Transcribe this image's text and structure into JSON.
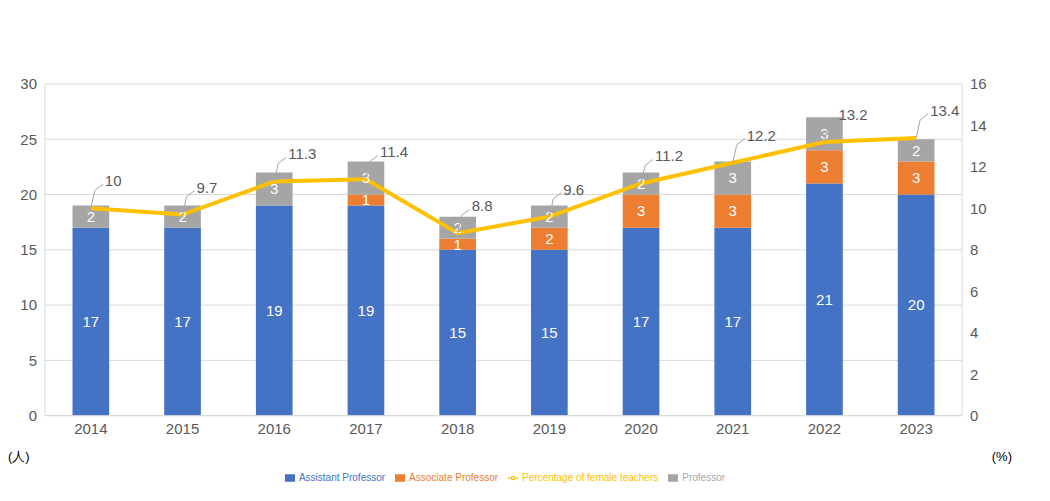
{
  "chart_data": {
    "type": "bar",
    "stacked": true,
    "grid": true,
    "legend": "bottom",
    "data_labels": true,
    "categories": [
      "2014",
      "2015",
      "2016",
      "2017",
      "2018",
      "2019",
      "2020",
      "2021",
      "2022",
      "2023"
    ],
    "ylabel": "(人)",
    "y2label": "(%)",
    "ylim": [
      0,
      30
    ],
    "yticks": [
      0,
      5,
      10,
      15,
      20,
      25,
      30
    ],
    "y2lim": [
      0,
      16
    ],
    "y2ticks": [
      0,
      2,
      4,
      6,
      8,
      10,
      12,
      14,
      16
    ],
    "series": [
      {
        "name": "Assistant Professor",
        "type": "bar",
        "color": "#4472c4",
        "values": [
          17,
          17,
          19,
          19,
          15,
          15,
          17,
          17,
          21,
          20
        ]
      },
      {
        "name": "Associate Professor",
        "type": "bar",
        "color": "#ed7d31",
        "values": [
          0,
          0,
          0,
          1,
          1,
          2,
          3,
          3,
          3,
          3
        ]
      },
      {
        "name": "Professor",
        "type": "bar",
        "color": "#a5a5a5",
        "values": [
          2,
          2,
          3,
          3,
          2,
          2,
          2,
          3,
          3,
          2
        ]
      },
      {
        "name": "Percentage of female teachers",
        "type": "line",
        "axis": "y2",
        "color": "#ffc000",
        "values": [
          10,
          9.7,
          11.3,
          11.4,
          8.8,
          9.6,
          11.2,
          12.2,
          13.2,
          13.4
        ]
      }
    ]
  }
}
